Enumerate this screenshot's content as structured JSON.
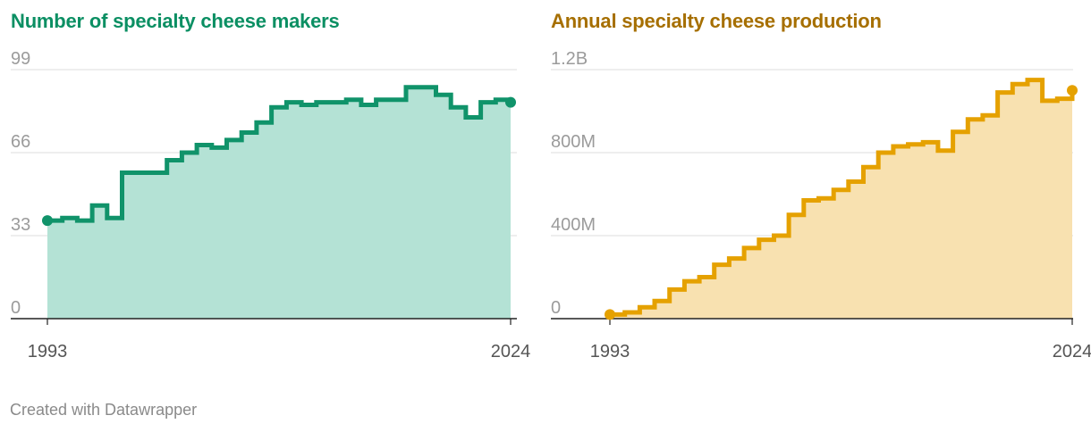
{
  "chart_data": [
    {
      "type": "area",
      "title": "Number of specialty cheese makers",
      "title_color": "#0b8f63",
      "line_color": "#10936a",
      "fill_color": "#b4e2d5",
      "x": [
        1993,
        1994,
        1995,
        1996,
        1997,
        1998,
        1999,
        2000,
        2001,
        2002,
        2003,
        2004,
        2005,
        2006,
        2007,
        2008,
        2009,
        2010,
        2011,
        2012,
        2013,
        2014,
        2015,
        2016,
        2017,
        2018,
        2019,
        2020,
        2021,
        2022,
        2023,
        2024
      ],
      "values": [
        39,
        40,
        39,
        45,
        40,
        58,
        58,
        58,
        63,
        66,
        69,
        68,
        71,
        74,
        78,
        84,
        86,
        85,
        86,
        86,
        87,
        85,
        87,
        87,
        92,
        92,
        89,
        84,
        80,
        86,
        87,
        86
      ],
      "ylim": [
        0,
        99
      ],
      "y_ticks": [
        0,
        33,
        66,
        99
      ],
      "y_tick_labels": [
        "0",
        "33",
        "66",
        "99"
      ],
      "x_tick_labels": [
        "1993",
        "2024"
      ],
      "xlabel": "",
      "ylabel": ""
    },
    {
      "type": "area",
      "title": "Annual specialty cheese production",
      "title_color": "#a66f00",
      "line_color": "#e5a100",
      "fill_color": "#f8e1b0",
      "x": [
        1993,
        1994,
        1995,
        1996,
        1997,
        1998,
        1999,
        2000,
        2001,
        2002,
        2003,
        2004,
        2005,
        2006,
        2007,
        2008,
        2009,
        2010,
        2011,
        2012,
        2013,
        2014,
        2015,
        2016,
        2017,
        2018,
        2019,
        2020,
        2021,
        2022,
        2023,
        2024
      ],
      "values": [
        20,
        30,
        55,
        85,
        140,
        180,
        200,
        260,
        290,
        340,
        380,
        400,
        500,
        570,
        580,
        620,
        660,
        730,
        800,
        830,
        840,
        850,
        810,
        900,
        960,
        980,
        1090,
        1130,
        1150,
        1050,
        1060,
        1100
      ],
      "ylim": [
        0,
        1200
      ],
      "y_ticks": [
        0,
        400,
        800,
        1200
      ],
      "y_tick_labels": [
        "0",
        "400M",
        "800M",
        "1.2B"
      ],
      "x_tick_labels": [
        "1993",
        "2024"
      ],
      "xlabel": "",
      "ylabel": ""
    }
  ],
  "footer": "Created with Datawrapper",
  "colors": {
    "grid": "#dcdcdc",
    "axis": "#222222",
    "tick_label": "#9b9b9b",
    "x_tick_label": "#555555"
  }
}
